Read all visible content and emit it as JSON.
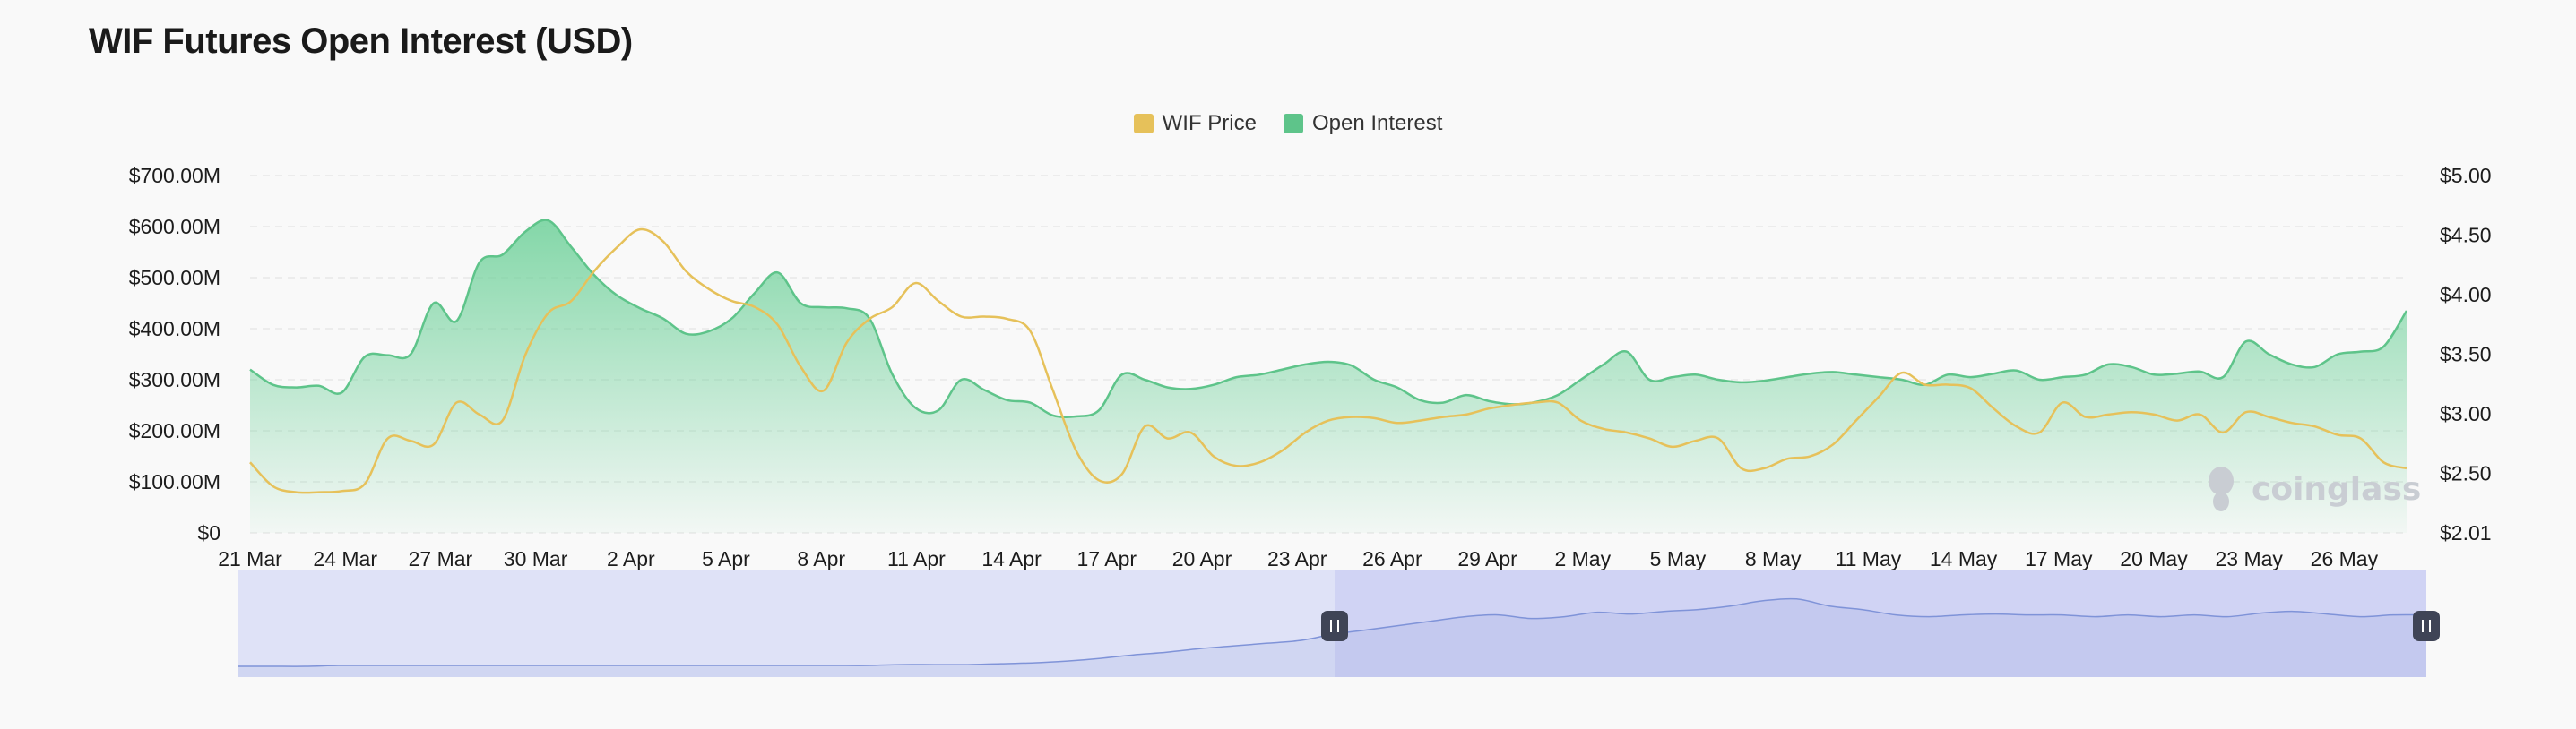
{
  "colors": {
    "price": "#e6c15a",
    "oi_line": "#5ec48a",
    "oi_fill_top": "#6fd19a",
    "slider_fill": "#dfe2f7",
    "slider_selected": "#c9cdf2",
    "slider_line": "#7f93d8",
    "grid": "#e8e8e8",
    "handle": "#3f4456"
  },
  "page": {
    "title": "WIF Futures Open Interest (USD)"
  },
  "legend": [
    {
      "label": "WIF Price",
      "color": "#e6c15a"
    },
    {
      "label": "Open Interest",
      "color": "#5ec48a"
    }
  ],
  "watermark": "coinglass",
  "chart_data": {
    "type": "area",
    "title": "WIF Futures Open Interest (USD)",
    "x_tick_labels": [
      "21 Mar",
      "24 Mar",
      "27 Mar",
      "30 Mar",
      "2 Apr",
      "5 Apr",
      "8 Apr",
      "11 Apr",
      "14 Apr",
      "17 Apr",
      "20 Apr",
      "23 Apr",
      "26 Apr",
      "29 Apr",
      "2 May",
      "5 May",
      "8 May",
      "11 May",
      "14 May",
      "17 May",
      "20 May",
      "23 May",
      "26 May"
    ],
    "y_left": {
      "labels": [
        "$0",
        "$100.00M",
        "$200.00M",
        "$300.00M",
        "$400.00M",
        "$500.00M",
        "$600.00M",
        "$700.00M"
      ],
      "min": 0,
      "max": 700
    },
    "y_right": {
      "labels": [
        "$2.01",
        "$2.50",
        "$3.00",
        "$3.50",
        "$4.00",
        "$4.50",
        "$5.00"
      ],
      "min": 2.01,
      "max": 5.0
    },
    "grid": true,
    "legend_position": "top-center",
    "series": [
      {
        "name": "Open Interest",
        "axis": "left",
        "unit": "USD millions",
        "values": [
          320,
          290,
          285,
          288,
          275,
          345,
          348,
          350,
          450,
          415,
          530,
          545,
          590,
          612,
          560,
          505,
          465,
          440,
          420,
          390,
          395,
          420,
          470,
          510,
          450,
          442,
          440,
          420,
          310,
          245,
          240,
          300,
          280,
          260,
          255,
          230,
          228,
          240,
          310,
          300,
          285,
          282,
          290,
          305,
          310,
          320,
          330,
          335,
          328,
          300,
          285,
          260,
          255,
          270,
          258,
          252,
          256,
          270,
          300,
          330,
          355,
          300,
          305,
          310,
          300,
          295,
          298,
          305,
          312,
          315,
          310,
          305,
          300,
          290,
          310,
          305,
          312,
          318,
          300,
          305,
          310,
          330,
          325,
          310,
          312,
          316,
          305,
          375,
          350,
          330,
          325,
          350,
          355,
          365,
          435
        ]
      },
      {
        "name": "WIF Price",
        "axis": "right",
        "unit": "USD",
        "values": [
          2.6,
          2.4,
          2.35,
          2.35,
          2.36,
          2.42,
          2.8,
          2.78,
          2.75,
          3.1,
          3.0,
          2.95,
          3.5,
          3.85,
          3.95,
          4.2,
          4.4,
          4.55,
          4.45,
          4.2,
          4.05,
          3.95,
          3.9,
          3.75,
          3.4,
          3.2,
          3.6,
          3.8,
          3.9,
          4.1,
          3.95,
          3.82,
          3.82,
          3.8,
          3.7,
          3.2,
          2.7,
          2.45,
          2.5,
          2.9,
          2.8,
          2.85,
          2.65,
          2.57,
          2.6,
          2.7,
          2.85,
          2.95,
          2.98,
          2.97,
          2.93,
          2.95,
          2.98,
          3.0,
          3.05,
          3.08,
          3.1,
          3.1,
          2.95,
          2.88,
          2.85,
          2.8,
          2.73,
          2.78,
          2.8,
          2.55,
          2.55,
          2.63,
          2.65,
          2.75,
          2.95,
          3.15,
          3.35,
          3.25,
          3.25,
          3.22,
          3.05,
          2.9,
          2.85,
          3.1,
          2.98,
          3.0,
          3.02,
          3.0,
          2.95,
          3.0,
          2.85,
          3.02,
          2.98,
          2.93,
          2.9,
          2.83,
          2.8,
          2.6,
          2.55
        ]
      }
    ],
    "overview_series_values": [
      0.04,
      0.04,
      0.04,
      0.05,
      0.05,
      0.05,
      0.05,
      0.05,
      0.05,
      0.05,
      0.05,
      0.05,
      0.05,
      0.05,
      0.05,
      0.05,
      0.05,
      0.05,
      0.05,
      0.05,
      0.06,
      0.06,
      0.06,
      0.07,
      0.08,
      0.1,
      0.13,
      0.17,
      0.2,
      0.24,
      0.27,
      0.3,
      0.33,
      0.4,
      0.45,
      0.5,
      0.55,
      0.6,
      0.62,
      0.58,
      0.6,
      0.65,
      0.63,
      0.66,
      0.68,
      0.72,
      0.78,
      0.8,
      0.72,
      0.68,
      0.62,
      0.6,
      0.62,
      0.63,
      0.62,
      0.62,
      0.6,
      0.62,
      0.6,
      0.62,
      0.6,
      0.64,
      0.66,
      0.63,
      0.6,
      0.62,
      0.62
    ]
  }
}
